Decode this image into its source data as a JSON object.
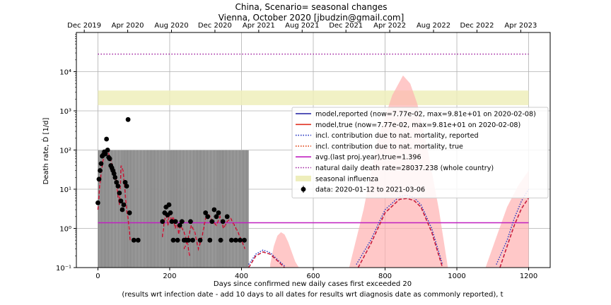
{
  "chart_data": {
    "type": "line",
    "title_line1": "China, Scenario= seasonal changes",
    "title_line2": "Vienna, October 2020 [jbudzin@gmail.com]",
    "xlabel_line1": "Days since confirmed new daily cases first exceeded 20",
    "xlabel_line2": "(results wrt infection date - add 10 days to all dates for results wrt diagnosis date as commonly reported), t",
    "ylabel": "Death rate, Ḋ [1/d]",
    "xlim": [
      -60,
      1260
    ],
    "ylim": [
      0.1,
      100000
    ],
    "yscale": "log",
    "grid": true,
    "x_ticks": [
      0,
      200,
      400,
      600,
      800,
      1000,
      1200
    ],
    "x_tick_labels": [
      "0",
      "200",
      "400",
      "600",
      "800",
      "1000",
      "1200"
    ],
    "y_ticks": [
      0.1,
      1,
      10,
      100,
      1000,
      10000
    ],
    "y_tick_labels": [
      "10⁻¹",
      "10⁰",
      "10¹",
      "10²",
      "10³",
      "10⁴"
    ],
    "top_axis": {
      "ticks": [
        -38,
        83,
        205,
        326,
        448,
        569,
        691,
        813,
        935,
        1056,
        1178
      ],
      "labels": [
        "Dec 2019",
        "Apr 2020",
        "Aug 2020",
        "Dec 2020",
        "Apr 2021",
        "Aug 2021",
        "Dec 2021",
        "Apr 2022",
        "Aug 2022",
        "Dec 2022",
        "Apr 2023"
      ]
    },
    "legend_position": "center-right",
    "legend": [
      {
        "label": "model,reported (now=7.77e-02, max=9.81e+01 on 2020-02-08)",
        "color": "#1f1fa0",
        "style": "solid"
      },
      {
        "label": "model,true (now=7.77e-02, max=9.81e+01 on 2020-02-08)",
        "color": "#e03020",
        "style": "solid"
      },
      {
        "label": "incl. contribution due to nat. mortality, reported",
        "color": "#2030c0",
        "style": "dotted"
      },
      {
        "label": "incl. contribution due to nat. mortality, true",
        "color": "#e04010",
        "style": "dotted"
      },
      {
        "label": "avg.(last proj.year),true=1.396",
        "color": "#c020c0",
        "style": "solid"
      },
      {
        "label": "natural daily death rate=28037.238 (whole country)",
        "color": "#a020a0",
        "style": "dotted"
      },
      {
        "label": "seasonal influenza",
        "color": "#eeeebb",
        "style": "patch"
      },
      {
        "label": "data: 2020-01-12 to 2021-03-06",
        "color": "#000000",
        "style": "errorbar"
      }
    ],
    "series": [
      {
        "name": "natural daily death rate=28037.238 (whole country)",
        "x": [
          0,
          1200
        ],
        "y": [
          28037.238,
          28037.238
        ],
        "color": "#a020a0"
      },
      {
        "name": "avg.(last proj.year),true=1.396",
        "x": [
          0,
          1200
        ],
        "y": [
          1.396,
          1.396
        ],
        "color": "#c020c0"
      },
      {
        "name": "seasonal influenza",
        "x": [
          0,
          1200
        ],
        "y_low": [
          1400,
          1400
        ],
        "y_high": [
          3300,
          3300
        ],
        "color": "#eeeebb"
      },
      {
        "name": "model,true (now=7.77e-02, max=9.81e+01 on 2020-02-08)",
        "color": "#c81e3c",
        "segments": [
          {
            "x": [
              0,
              5,
              10,
              15,
              20,
              25,
              27,
              30,
              35,
              40,
              45,
              50,
              55,
              60,
              65,
              70,
              75,
              80,
              85,
              90
            ],
            "y": [
              3,
              12,
              30,
              60,
              85,
              98,
              95,
              80,
              60,
              40,
              28,
              18,
              8,
              4,
              40,
              30,
              10,
              3,
              1.5,
              0.5
            ]
          },
          {
            "x": [
              180,
              185,
              190,
              195,
              200,
              205,
              210,
              215,
              220,
              225,
              230,
              240,
              250,
              255
            ],
            "y": [
              0.6,
              1.5,
              2.5,
              1.2,
              2.8,
              1.5,
              2.0,
              1.0,
              1.5,
              0.7,
              1.2,
              0.8,
              0.4,
              0.2
            ]
          },
          {
            "x": [
              240,
              250,
              260,
              270,
              280,
              290,
              300,
              310,
              320,
              330,
              340,
              350,
              360,
              370,
              380,
              390,
              400,
              410
            ],
            "y": [
              0.3,
              0.5,
              1.2,
              0.8,
              0.3,
              0.6,
              1.8,
              2.2,
              1.5,
              1.2,
              2.0,
              1.0,
              1.5,
              1.8,
              1.2,
              0.8,
              0.5,
              0.3
            ]
          },
          {
            "x": [
              420,
              440,
              460,
              480,
              500,
              520
            ],
            "y": [
              0.1,
              0.2,
              0.25,
              0.22,
              0.15,
              0.1
            ]
          },
          {
            "x": [
              725,
              760,
              800,
              840,
              860,
              880,
              900,
              930,
              960
            ],
            "y": [
              0.1,
              0.4,
              2.5,
              5.5,
              5.8,
              5.2,
              3.5,
              0.8,
              0.1
            ]
          },
          {
            "x": [
              1120,
              1140,
              1160,
              1180,
              1200
            ],
            "y": [
              0.1,
              0.35,
              1.2,
              3.2,
              6.0
            ]
          }
        ]
      },
      {
        "name": "model,reported (now=7.77e-02, max=9.81e+01 on 2020-02-08)",
        "color": "#2030c0",
        "segments": [
          {
            "x": [
              420,
              440,
              460,
              480,
              500,
              520
            ],
            "y": [
              0.12,
              0.22,
              0.28,
              0.24,
              0.16,
              0.11
            ]
          },
          {
            "x": [
              720,
              760,
              800,
              840,
              860,
              880,
              900,
              930,
              960
            ],
            "y": [
              0.12,
              0.5,
              3.0,
              6.5,
              7.0,
              6.2,
              4.0,
              1.0,
              0.12
            ]
          },
          {
            "x": [
              1110,
              1140,
              1160,
              1180,
              1200
            ],
            "y": [
              0.12,
              0.5,
              1.8,
              5.0,
              10
            ]
          }
        ]
      },
      {
        "name": "uncertainty band",
        "color": "#ffb0b0",
        "segments": [
          {
            "x": [
              480,
              490,
              500,
              510,
              520,
              530,
              540,
              550,
              560
            ],
            "y_low": [
              0.1,
              0.1,
              0.1,
              0.1,
              0.1,
              0.1,
              0.1,
              0.1,
              0.1
            ],
            "y_high": [
              0.12,
              0.35,
              0.65,
              0.8,
              0.7,
              0.45,
              0.25,
              0.14,
              0.1
            ]
          },
          {
            "x": [
              700,
              740,
              780,
              820,
              850,
              870,
              890,
              920,
              950,
              975
            ],
            "y_low": [
              0.1,
              0.1,
              0.1,
              0.1,
              0.1,
              0.1,
              0.1,
              0.1,
              0.1,
              0.1
            ],
            "y_high": [
              0.1,
              3,
              200,
              2500,
              8000,
              5000,
              1500,
              90,
              3,
              0.1
            ]
          },
          {
            "x": [
              1080,
              1110,
              1140,
              1170,
              1200
            ],
            "y_low": [
              0.1,
              0.1,
              0.1,
              0.1,
              0.1
            ],
            "y_high": [
              0.1,
              0.6,
              3.5,
              12,
              30
            ]
          }
        ]
      },
      {
        "name": "data: 2020-01-12 to 2021-03-06",
        "color": "#000000",
        "x": [
          0,
          3,
          6,
          9,
          12,
          15,
          18,
          21,
          24,
          27,
          30,
          33,
          36,
          39,
          42,
          45,
          48,
          52,
          56,
          60,
          64,
          68,
          72,
          76,
          80,
          84,
          88,
          100,
          112,
          180,
          186,
          190,
          194,
          198,
          202,
          206,
          210,
          216,
          222,
          228,
          234,
          240,
          246,
          252,
          258,
          264,
          285,
          300,
          306,
          312,
          318,
          324,
          330,
          336,
          342,
          348,
          360,
          372,
          384,
          396,
          408
        ],
        "y": [
          4.5,
          18,
          30,
          45,
          70,
          75,
          90,
          80,
          190,
          100,
          65,
          60,
          40,
          35,
          30,
          25,
          20,
          15,
          12,
          8,
          5,
          3,
          4,
          15,
          12,
          600,
          2.5,
          0.5,
          0.5,
          1.5,
          2.5,
          3.5,
          2.2,
          4,
          2.5,
          1.5,
          0.5,
          1.5,
          0.5,
          1.2,
          1.5,
          0.5,
          0.5,
          0.5,
          1.5,
          0.5,
          0.5,
          2.5,
          2,
          0.5,
          1.5,
          3,
          2,
          2.5,
          0.5,
          1.5,
          2,
          0.5,
          0.5,
          0.5,
          0.5
        ]
      }
    ],
    "gray_bars": {
      "color": "#808080",
      "x_start": 0,
      "x_end": 420,
      "step": 4,
      "values": [
        100,
        100,
        100,
        100,
        100,
        100,
        100,
        100,
        100,
        100,
        100,
        100,
        100,
        100,
        100,
        100,
        100,
        100,
        100,
        100,
        100,
        100,
        100,
        100,
        100,
        100,
        100,
        100,
        100,
        100,
        100,
        100,
        100,
        100,
        100,
        100,
        100,
        100,
        100,
        100,
        100,
        100,
        100,
        100,
        100,
        100,
        100,
        100,
        100,
        100,
        100,
        100,
        100,
        100,
        100,
        100,
        100,
        100,
        100,
        100,
        100,
        100,
        100,
        100,
        100,
        100,
        100,
        100,
        100,
        100,
        100,
        100,
        100,
        100,
        100,
        100,
        100,
        100,
        100,
        100,
        100,
        100,
        100,
        100,
        100,
        100,
        100,
        100,
        100,
        100,
        100,
        100,
        100,
        100,
        100,
        100,
        100,
        100,
        100,
        100,
        100,
        100,
        100,
        100,
        100
      ]
    }
  }
}
